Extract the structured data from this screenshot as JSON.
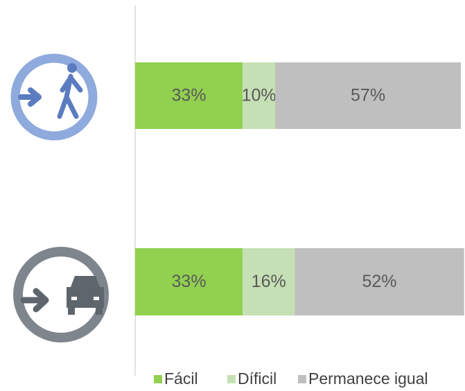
{
  "chart_data": {
    "type": "stacked-barh",
    "categories": [
      null,
      null
    ],
    "series": [
      {
        "name": "Fácil",
        "color": "#92d050",
        "values": [
          33,
          33
        ],
        "value_labels": [
          "33%",
          "33%"
        ]
      },
      {
        "name": "Díficil",
        "color": "#c5e0b4",
        "values": [
          10,
          16
        ],
        "value_labels": [
          "10%",
          "16%"
        ]
      },
      {
        "name": "Permanece igual",
        "color": "#bfbfbf",
        "values": [
          57,
          52
        ],
        "value_labels": [
          "57%",
          "52%"
        ]
      }
    ],
    "xlim": [
      0,
      100
    ],
    "legend": "bottom"
  }
}
